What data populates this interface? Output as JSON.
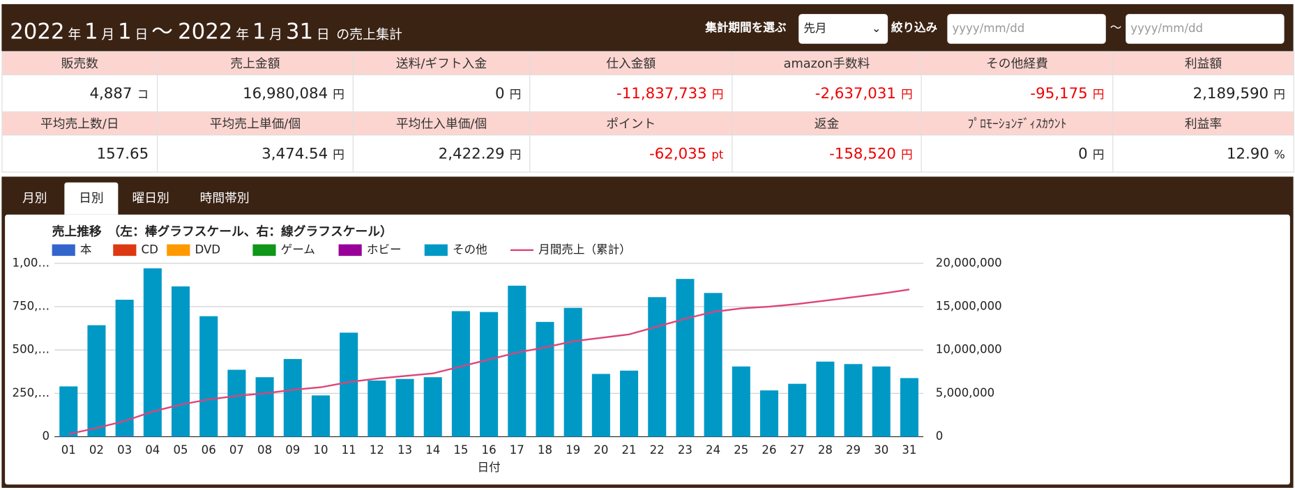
{
  "header": {
    "title_segments": [
      "2022",
      "年",
      "1",
      "月",
      "1",
      "日",
      "～",
      "2022",
      "年",
      "1",
      "月",
      "31",
      "日",
      "の売上集計"
    ],
    "period_label": "集計期間を選ぶ",
    "period_select": "先月",
    "filter_label": "絞り込み",
    "date_from_placeholder": "yyyy/mm/dd",
    "date_sep": "～",
    "date_to_placeholder": "yyyy/mm/dd"
  },
  "stats": {
    "rows": [
      [
        {
          "label": "販売数",
          "value": "4,887",
          "unit": "コ",
          "color": "#222"
        },
        {
          "label": "売上金額",
          "value": "16,980,084",
          "unit": "円",
          "color": "#222"
        },
        {
          "label": "送料/ギフト入金",
          "value": "0",
          "unit": "円",
          "color": "#222"
        },
        {
          "label": "仕入金額",
          "value": "-11,837,733",
          "unit": "円",
          "color": "#ee0000"
        },
        {
          "label": "amazon手数料",
          "value": "-2,637,031",
          "unit": "円",
          "color": "#ee0000"
        },
        {
          "label": "その他経費",
          "value": "-95,175",
          "unit": "円",
          "color": "#ee0000"
        },
        {
          "label": "利益額",
          "value": "2,189,590",
          "unit": "円",
          "color": "#222"
        }
      ],
      [
        {
          "label": "平均売上数/日",
          "value": "157.65",
          "color": "#222"
        },
        {
          "label": "平均売上単価/個",
          "value": "3,474.54",
          "unit": "円",
          "color": "#222"
        },
        {
          "label": "平均仕入単価/個",
          "value": "2,422.29",
          "unit": "円",
          "color": "#222"
        },
        {
          "label": "ポイント",
          "value": "-62,035",
          "unit": "pt",
          "color": "#ee0000"
        },
        {
          "label": "返金",
          "value": "-158,520",
          "unit": "円",
          "color": "#ee0000"
        },
        {
          "label": "ﾌﾟﾛﾓｰｼｮﾝﾃﾞｨｽｶｳﾝﾄ",
          "value": "0",
          "unit": "円",
          "color": "#222"
        },
        {
          "label": "利益率",
          "value": "12.90",
          "unit": "%",
          "color": "#222"
        }
      ]
    ]
  },
  "tabs": [
    "月別",
    "日別",
    "曜日別",
    "時間帯別"
  ],
  "chart_data": {
    "type": "bar",
    "title": "売上推移　（左：棒グラフスケール、右：線グラフスケール）",
    "x_label": "日付",
    "categories": [
      "01",
      "02",
      "03",
      "04",
      "05",
      "06",
      "07",
      "08",
      "09",
      "10",
      "11",
      "12",
      "13",
      "14",
      "15",
      "16",
      "17",
      "18",
      "19",
      "20",
      "21",
      "22",
      "23",
      "24",
      "25",
      "26",
      "27",
      "28",
      "29",
      "30",
      "31"
    ],
    "series": [
      {
        "name": "本",
        "color": "#3366cc",
        "values": [
          0,
          0,
          5,
          0,
          0,
          0,
          0,
          0,
          0,
          0,
          0,
          0,
          0,
          0,
          0,
          0,
          0,
          0,
          0,
          0,
          0,
          0,
          0,
          0,
          0,
          0,
          0,
          0,
          0,
          0,
          0
        ]
      },
      {
        "name": "CD",
        "color": "#dc3912",
        "values": [
          0,
          0,
          0,
          0,
          0,
          0,
          0,
          0,
          0,
          0,
          0,
          0,
          0,
          0,
          0,
          0,
          0,
          0,
          0,
          0,
          0,
          0,
          0,
          0,
          0,
          0,
          0,
          0,
          0,
          0,
          0
        ]
      },
      {
        "name": "DVD",
        "color": "#ff9900",
        "values": [
          0,
          0,
          0,
          0,
          0,
          0,
          0,
          0,
          0,
          0,
          0,
          0,
          0,
          0,
          0,
          0,
          0,
          0,
          0,
          0,
          0,
          0,
          0,
          0,
          0,
          0,
          0,
          0,
          0,
          0,
          0
        ]
      },
      {
        "name": "ゲーム",
        "color": "#109618",
        "values": [
          0,
          0,
          0,
          0,
          0,
          0,
          0,
          0,
          0,
          0,
          0,
          0,
          0,
          0,
          0,
          0,
          0,
          0,
          0,
          0,
          0,
          0,
          0,
          0,
          0,
          0,
          0,
          0,
          0,
          0,
          0
        ]
      },
      {
        "name": "ホビー",
        "color": "#990099",
        "values": [
          0,
          0,
          0,
          0,
          0,
          0,
          0,
          0,
          0,
          0,
          0,
          0,
          0,
          0,
          0,
          0,
          0,
          0,
          0,
          0,
          0,
          0,
          0,
          0,
          0,
          0,
          0,
          0,
          0,
          0,
          0
        ]
      },
      {
        "name": "その他",
        "color": "#0099c6",
        "values": [
          290,
          643,
          785,
          971,
          867,
          695,
          386,
          343,
          448,
          238,
          600,
          324,
          333,
          343,
          724,
          719,
          871,
          662,
          743,
          362,
          381,
          805,
          910,
          829,
          405,
          267,
          305,
          433,
          419,
          405,
          338
        ]
      },
      {
        "name": "月間売上（累計）",
        "color": "#dd4477",
        "type": "line",
        "axis": "y2",
        "values": [
          300000,
          1000000,
          1800000,
          2900000,
          3700000,
          4300000,
          4700000,
          5000000,
          5400000,
          5700000,
          6300000,
          6700000,
          7000000,
          7300000,
          8100000,
          8900000,
          9700000,
          10300000,
          11000000,
          11400000,
          11800000,
          12700000,
          13600000,
          14400000,
          14800000,
          15000000,
          15300000,
          15700000,
          16100000,
          16500000,
          16980084
        ]
      }
    ],
    "ylim": [
      0,
      1000
    ],
    "yticks": [
      0,
      {
        "value": 250,
        "label": "250,…"
      },
      {
        "value": 500,
        "label": "500,…"
      },
      {
        "value": 750,
        "label": "750,…"
      },
      {
        "value": 1000,
        "label": "1,00…"
      }
    ],
    "y2lim": [
      0,
      20000000
    ],
    "y2ticks": [
      0,
      {
        "value": 5000000,
        "label": "5,000,000"
      },
      {
        "value": 10000000,
        "label": "10,000,000"
      },
      {
        "value": 15000000,
        "label": "15,000,000"
      },
      {
        "value": 20000000,
        "label": "20,000,000"
      }
    ],
    "stacked": true,
    "grid": true
  }
}
